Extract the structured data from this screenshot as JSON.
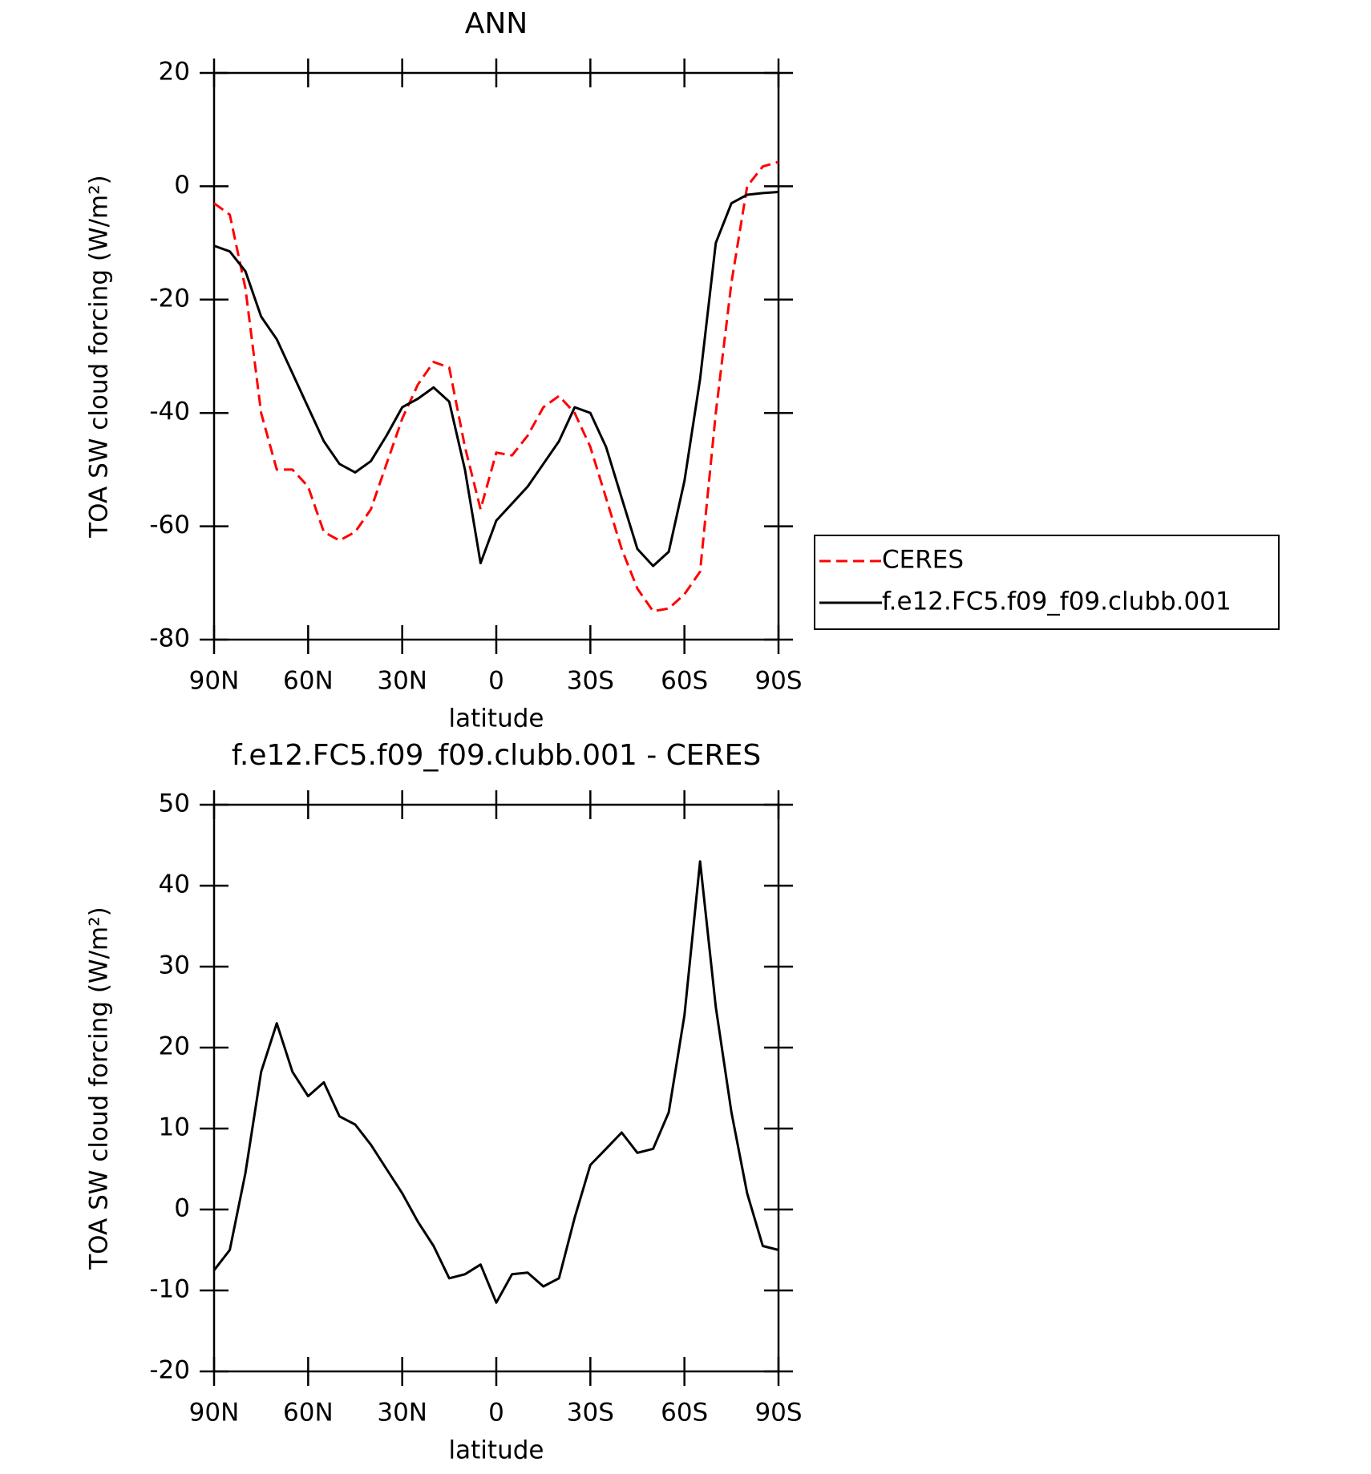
{
  "chart_data": [
    {
      "type": "line",
      "title": "ANN",
      "xlabel": "latitude",
      "ylabel": "TOA SW cloud forcing (W/m²)",
      "x": [
        90,
        85,
        80,
        75,
        70,
        65,
        60,
        55,
        50,
        45,
        40,
        35,
        30,
        25,
        20,
        15,
        10,
        5,
        0,
        -5,
        -10,
        -15,
        -20,
        -25,
        -30,
        -35,
        -40,
        -45,
        -50,
        -55,
        -60,
        -65,
        -70,
        -75,
        -80,
        -85,
        -90
      ],
      "xlim": [
        90,
        -90
      ],
      "xticks": [
        {
          "value": 90,
          "label": "90N"
        },
        {
          "value": 60,
          "label": "60N"
        },
        {
          "value": 30,
          "label": "30N"
        },
        0,
        {
          "value": -30,
          "label": "30S"
        },
        {
          "value": -60,
          "label": "60S"
        },
        {
          "value": -90,
          "label": "90S"
        }
      ],
      "ylim": [
        -80,
        20
      ],
      "yticks": [
        -80,
        -60,
        -40,
        -20,
        0,
        20
      ],
      "legend": "right",
      "series": [
        {
          "name": "CERES",
          "color": "#ff0000",
          "dashed": true,
          "values": [
            -3,
            -5,
            -18,
            -40,
            -50,
            -50,
            -53,
            -61,
            -62.5,
            -61,
            -57,
            -49,
            -41,
            -35,
            -31,
            -32,
            -46,
            -57,
            -47,
            -47.5,
            -44,
            -39,
            -37,
            -40,
            -46,
            -55,
            -64,
            -71,
            -75,
            -74.5,
            -72,
            -68,
            -40,
            -17,
            0,
            3.5,
            4.3
          ]
        },
        {
          "name": "f.e12.FC5.f09_f09.clubb.001",
          "color": "#000000",
          "dashed": false,
          "values": [
            -10.5,
            -11.5,
            -15,
            -23,
            -27,
            -33,
            -39,
            -45,
            -49,
            -50.5,
            -48.5,
            -44,
            -39,
            -37.5,
            -35.5,
            -38,
            -50,
            -66.5,
            -59,
            -56,
            -53,
            -49,
            -45,
            -39,
            -40,
            -46,
            -55,
            -64,
            -67,
            -64.5,
            -52,
            -34,
            -10,
            -3,
            -1.5,
            -1.2,
            -1
          ]
        }
      ]
    },
    {
      "type": "line",
      "title": "f.e12.FC5.f09_f09.clubb.001 - CERES",
      "xlabel": "latitude",
      "ylabel": "TOA SW cloud forcing (W/m²)",
      "x": [
        90,
        85,
        80,
        75,
        70,
        65,
        60,
        55,
        50,
        45,
        40,
        35,
        30,
        25,
        20,
        15,
        10,
        5,
        0,
        -5,
        -10,
        -15,
        -20,
        -25,
        -30,
        -35,
        -40,
        -45,
        -50,
        -55,
        -60,
        -65,
        -70,
        -75,
        -80,
        -85,
        -90
      ],
      "xlim": [
        90,
        -90
      ],
      "xticks": [
        {
          "value": 90,
          "label": "90N"
        },
        {
          "value": 60,
          "label": "60N"
        },
        {
          "value": 30,
          "label": "30N"
        },
        0,
        {
          "value": -30,
          "label": "30S"
        },
        {
          "value": -60,
          "label": "60S"
        },
        {
          "value": -90,
          "label": "90S"
        }
      ],
      "ylim": [
        -20,
        50
      ],
      "yticks": [
        -20,
        -10,
        0,
        10,
        20,
        30,
        40,
        50
      ],
      "color": "#000000",
      "values": [
        -7.5,
        -5,
        4.5,
        17,
        23,
        17,
        14,
        15.7,
        11.5,
        10.5,
        8,
        5,
        2,
        -1.5,
        -4.5,
        -8.5,
        -8,
        -6.8,
        -11.5,
        -8,
        -7.8,
        -9.5,
        -8.5,
        -1,
        5.5,
        7.5,
        9.5,
        7,
        7.5,
        12,
        24,
        43,
        25,
        12,
        2,
        -4.5,
        -5
      ]
    }
  ]
}
